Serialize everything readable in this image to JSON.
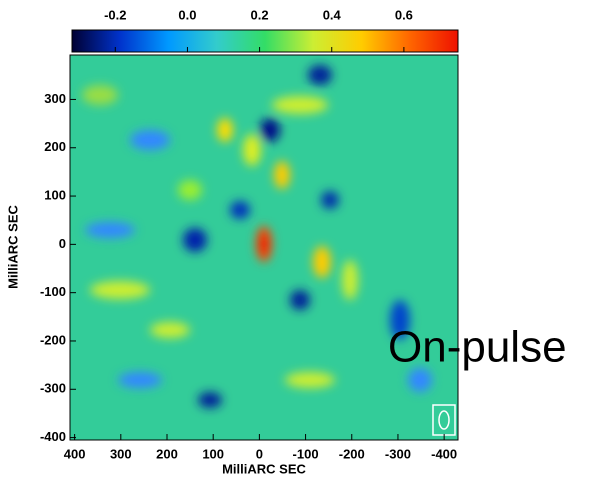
{
  "chart_data": {
    "type": "heatmap",
    "annotation": "On-pulse",
    "xlabel": "MilliARC SEC",
    "ylabel": "MilliARC SEC",
    "xlim": [
      410,
      -430
    ],
    "xticks": [
      400,
      300,
      200,
      100,
      0,
      -100,
      -200,
      -300,
      -400
    ],
    "ylim": [
      -405,
      392
    ],
    "yticks": [
      300,
      200,
      100,
      0,
      -100,
      -200,
      -300,
      -400
    ],
    "clim": [
      -0.32,
      0.75
    ],
    "cticks": [
      -0.2,
      {
        "value": 0,
        "label": "0.0"
      },
      0.2,
      0.4,
      0.6
    ],
    "colormap": [
      "#000033",
      "#0033cc",
      "#0099ff",
      "#33cccc",
      "#33dd66",
      "#ccee33",
      "#ffcc00",
      "#ff6600",
      "#ee1100"
    ]
  }
}
